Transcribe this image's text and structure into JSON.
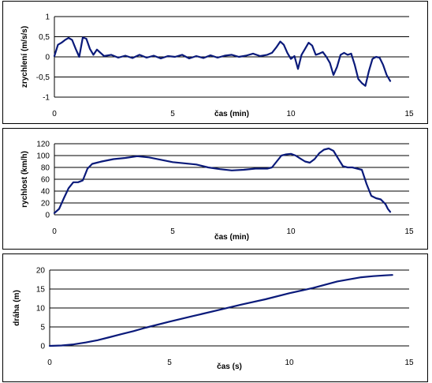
{
  "chart_data": [
    {
      "type": "line",
      "xlabel": "čas (min)",
      "ylabel": "zrychlení (m/s/s)",
      "xlim": [
        0,
        15
      ],
      "ylim": [
        -1,
        1
      ],
      "xticks": [
        "0",
        "5",
        "10",
        "15"
      ],
      "yticks": [
        "-1",
        "-0,5",
        "0",
        "0,5",
        "1"
      ],
      "grid": "horizontal",
      "color": "#0a1a7a",
      "x": [
        0,
        0.15,
        0.3,
        0.45,
        0.6,
        0.75,
        0.9,
        1.05,
        1.2,
        1.35,
        1.5,
        1.65,
        1.8,
        1.95,
        2.1,
        2.4,
        2.7,
        3.0,
        3.3,
        3.6,
        3.9,
        4.2,
        4.5,
        4.8,
        5.1,
        5.4,
        5.7,
        6.0,
        6.3,
        6.6,
        6.9,
        7.2,
        7.5,
        7.8,
        8.1,
        8.4,
        8.7,
        9.0,
        9.2,
        9.4,
        9.55,
        9.7,
        9.85,
        10.0,
        10.15,
        10.3,
        10.45,
        10.6,
        10.75,
        10.9,
        11.05,
        11.2,
        11.35,
        11.5,
        11.65,
        11.8,
        11.95,
        12.1,
        12.25,
        12.4,
        12.55,
        12.7,
        12.85,
        13.0,
        13.15,
        13.3,
        13.45,
        13.6,
        13.75,
        13.9,
        14.05,
        14.2
      ],
      "y": [
        0.02,
        0.3,
        0.35,
        0.42,
        0.47,
        0.42,
        0.2,
        0.0,
        0.48,
        0.45,
        0.2,
        0.05,
        0.18,
        0.1,
        0.02,
        0.05,
        -0.02,
        0.03,
        -0.03,
        0.05,
        -0.02,
        0.03,
        -0.04,
        0.02,
        0.0,
        0.05,
        -0.04,
        0.02,
        -0.03,
        0.04,
        -0.02,
        0.03,
        0.05,
        0.0,
        0.03,
        0.08,
        0.02,
        0.05,
        0.1,
        0.25,
        0.38,
        0.3,
        0.1,
        -0.05,
        0.02,
        -0.3,
        0.05,
        0.2,
        0.35,
        0.28,
        0.05,
        0.08,
        0.12,
        0.0,
        -0.15,
        -0.45,
        -0.25,
        0.05,
        0.1,
        0.05,
        0.08,
        -0.2,
        -0.55,
        -0.65,
        -0.72,
        -0.35,
        -0.05,
        0.0,
        -0.02,
        -0.2,
        -0.45,
        -0.6
      ]
    },
    {
      "type": "line",
      "xlabel": "čas (min)",
      "ylabel": "rychlost (km/h)",
      "xlim": [
        0,
        15
      ],
      "ylim": [
        0,
        120
      ],
      "xticks": [
        "0",
        "5",
        "10",
        "15"
      ],
      "yticks": [
        "0",
        "20",
        "40",
        "60",
        "80",
        "100",
        "120"
      ],
      "grid": "horizontal",
      "color": "#0a1a7a",
      "x": [
        0,
        0.2,
        0.4,
        0.6,
        0.8,
        1.0,
        1.2,
        1.4,
        1.6,
        1.8,
        2.0,
        2.5,
        3.0,
        3.5,
        4.0,
        4.5,
        5.0,
        5.5,
        6.0,
        6.5,
        7.0,
        7.5,
        8.0,
        8.5,
        9.0,
        9.2,
        9.4,
        9.6,
        9.8,
        10.0,
        10.2,
        10.4,
        10.6,
        10.8,
        11.0,
        11.2,
        11.4,
        11.6,
        11.8,
        12.0,
        12.2,
        12.4,
        12.6,
        12.8,
        13.0,
        13.2,
        13.4,
        13.6,
        13.8,
        14.0,
        14.1,
        14.2
      ],
      "y": [
        3,
        10,
        28,
        45,
        55,
        55,
        58,
        78,
        86,
        88,
        90,
        94,
        96,
        99,
        97,
        93,
        89,
        87,
        85,
        80,
        77,
        75,
        76,
        78,
        78,
        80,
        90,
        100,
        102,
        103,
        100,
        95,
        90,
        88,
        94,
        104,
        110,
        112,
        108,
        95,
        82,
        80,
        80,
        78,
        76,
        52,
        32,
        28,
        26,
        18,
        10,
        5
      ]
    },
    {
      "type": "line",
      "xlabel": "čas (s)",
      "ylabel": "dráha (m)",
      "xlim": [
        0,
        15
      ],
      "ylim": [
        0,
        20
      ],
      "xticks": [
        "0",
        "5",
        "10",
        "15"
      ],
      "yticks": [
        "0",
        "5",
        "10",
        "15",
        "20"
      ],
      "grid": "horizontal",
      "color": "#0a1a7a",
      "x": [
        0,
        0.5,
        1.0,
        1.5,
        2.0,
        2.5,
        3.0,
        3.5,
        4.0,
        5.0,
        6.0,
        7.0,
        8.0,
        9.0,
        10.0,
        11.0,
        12.0,
        13.0,
        13.5,
        14.0,
        14.3
      ],
      "y": [
        0,
        0.1,
        0.4,
        0.9,
        1.5,
        2.3,
        3.1,
        3.9,
        4.8,
        6.4,
        7.9,
        9.4,
        10.9,
        12.3,
        13.9,
        15.3,
        17.0,
        18.1,
        18.4,
        18.6,
        18.7
      ]
    }
  ]
}
